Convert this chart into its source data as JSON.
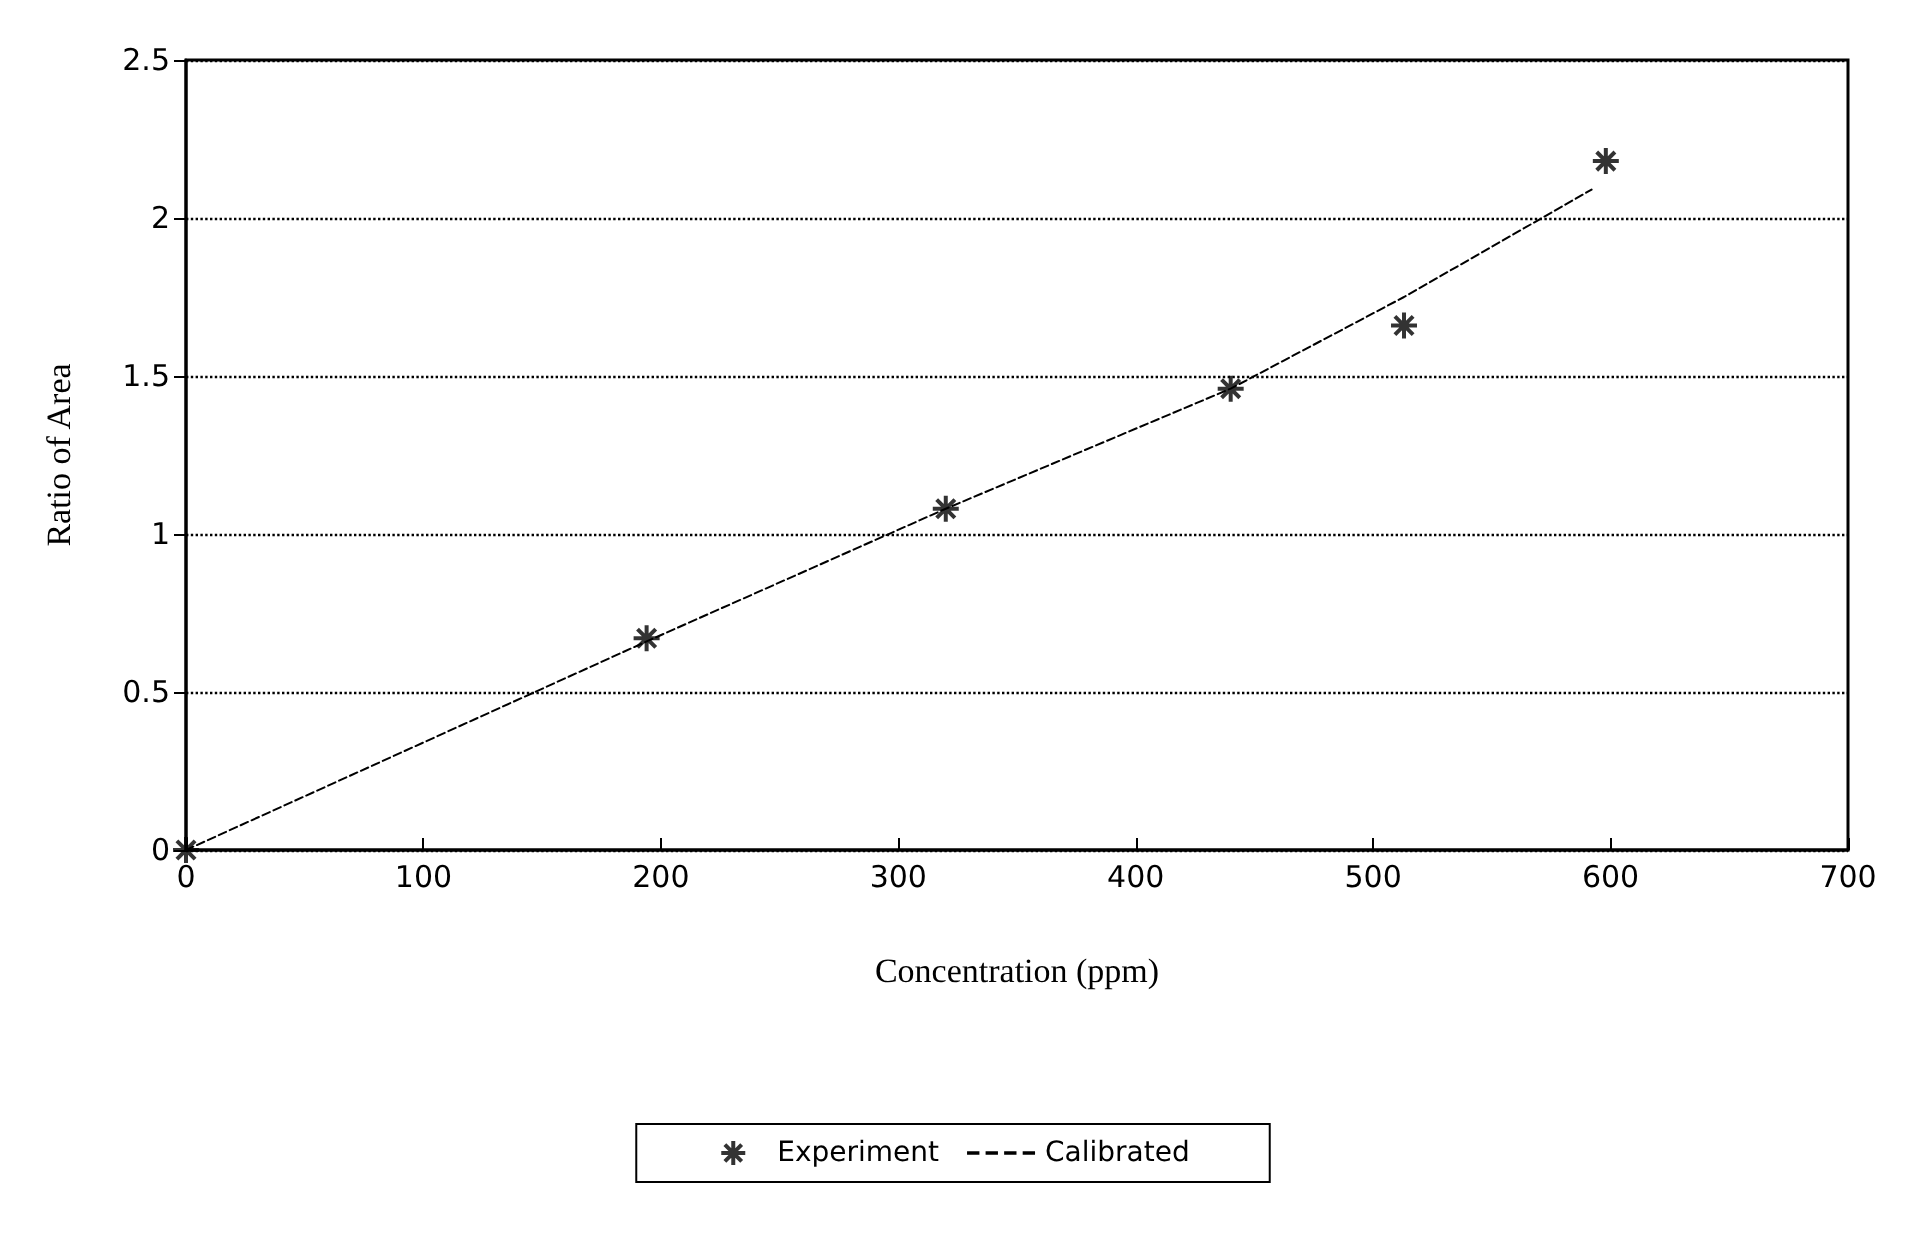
{
  "chart_data": {
    "type": "scatter",
    "xlabel": "Concentration (ppm)",
    "ylabel": "Ratio of Area",
    "xlim": [
      0,
      700
    ],
    "xticks": [
      0,
      100,
      200,
      300,
      400,
      500,
      600,
      700
    ],
    "ylim": [
      0,
      2.5
    ],
    "yticks": [
      0,
      0.5,
      1,
      1.5,
      2,
      2.5
    ],
    "grid": "y",
    "legend": "bottom",
    "series": [
      {
        "name": "Experiment",
        "color": "#000000",
        "marker": "cross",
        "x": [
          0,
          194,
          320,
          440,
          513,
          598
        ],
        "values": [
          0,
          0.67,
          1.08,
          1.46,
          1.66,
          2.18
        ]
      },
      {
        "name": "Calibrated",
        "type": "line",
        "color": "#000000",
        "marker": "none",
        "line_style": "dashed",
        "x": [
          0,
          194,
          320,
          440,
          513,
          592
        ],
        "values": [
          0,
          0.66,
          1.08,
          1.46,
          1.75,
          2.09
        ]
      }
    ]
  }
}
